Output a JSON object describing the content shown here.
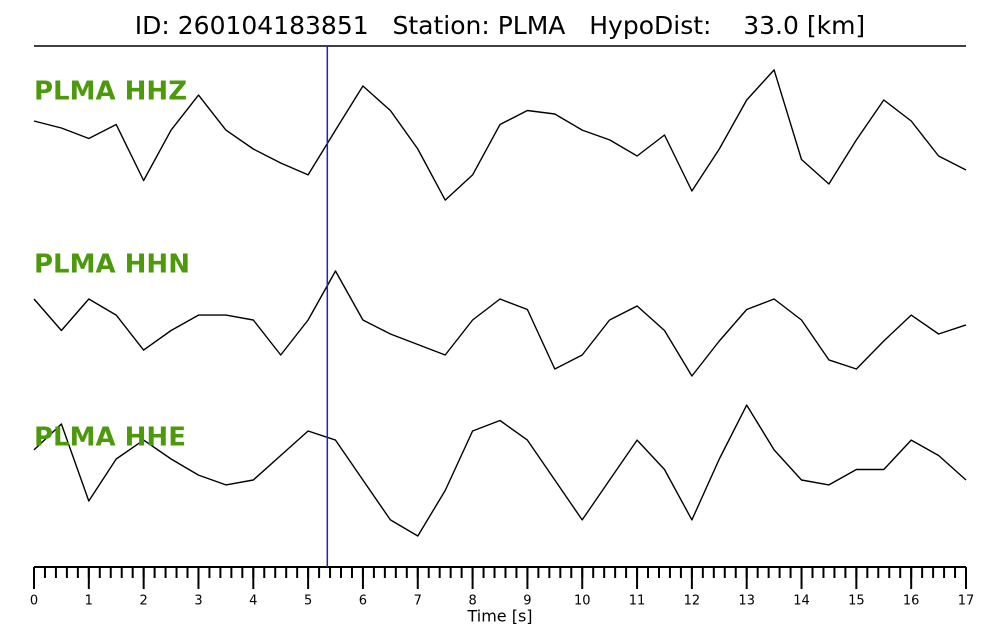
{
  "chart_data": {
    "type": "line",
    "title": "ID: 260104183851   Station: PLMA   HypoDist:    33.0 [km]",
    "x_label": "Time [s]",
    "xlim": [
      0,
      17
    ],
    "xticks": [
      0,
      1,
      2,
      3,
      4,
      5,
      6,
      7,
      8,
      9,
      10,
      11,
      12,
      13,
      14,
      15,
      16,
      17
    ],
    "minor_tick_interval": 0.2,
    "pick_time": 5.35,
    "pick_color": "#1f1fd0",
    "label_color": "#4c9a0c",
    "x": [
      0,
      0.5,
      1,
      1.5,
      2,
      2.5,
      3,
      3.5,
      4,
      4.5,
      5,
      5.5,
      6,
      6.5,
      7,
      7.5,
      8,
      8.5,
      9,
      9.5,
      10,
      10.5,
      11,
      11.5,
      12,
      12.5,
      13,
      13.5,
      14,
      14.5,
      15,
      15.5,
      16,
      16.5,
      17
    ],
    "series": [
      {
        "name": "PLMA HHZ",
        "color": "#000000",
        "values": [
          0.2,
          0.1,
          -0.05,
          0.15,
          -0.65,
          0.07,
          0.57,
          0.07,
          -0.2,
          -0.4,
          -0.57,
          0.07,
          0.7,
          0.35,
          -0.2,
          -0.93,
          -0.57,
          0.15,
          0.35,
          0.3,
          0.07,
          -0.07,
          -0.3,
          0,
          -0.8,
          -0.2,
          0.5,
          0.93,
          -0.35,
          -0.7,
          -0.07,
          0.5,
          0.2,
          -0.3,
          -0.5
        ]
      },
      {
        "name": "PLMA HHN",
        "color": "#000000",
        "values": [
          0.3,
          -0.15,
          0.3,
          0.07,
          -0.43,
          -0.15,
          0.07,
          0.07,
          0,
          -0.5,
          0,
          0.7,
          0,
          -0.2,
          -0.35,
          -0.5,
          0,
          0.3,
          0.15,
          -0.7,
          -0.5,
          0,
          0.2,
          -0.15,
          -0.8,
          -0.3,
          0.15,
          0.3,
          0,
          -0.57,
          -0.7,
          -0.3,
          0.07,
          -0.2,
          -0.07
        ]
      },
      {
        "name": "PLMA HHE",
        "color": "#000000",
        "values": [
          0.43,
          0.8,
          -0.3,
          0.3,
          0.57,
          0.3,
          0.07,
          -0.07,
          0,
          0.35,
          0.7,
          0.57,
          0,
          -0.57,
          -0.8,
          -0.15,
          0.7,
          0.85,
          0.57,
          0,
          -0.57,
          0,
          0.57,
          0.15,
          -0.57,
          0.3,
          1.07,
          0.43,
          0,
          -0.07,
          0.15,
          0.15,
          0.57,
          0.35,
          0
        ]
      }
    ]
  }
}
